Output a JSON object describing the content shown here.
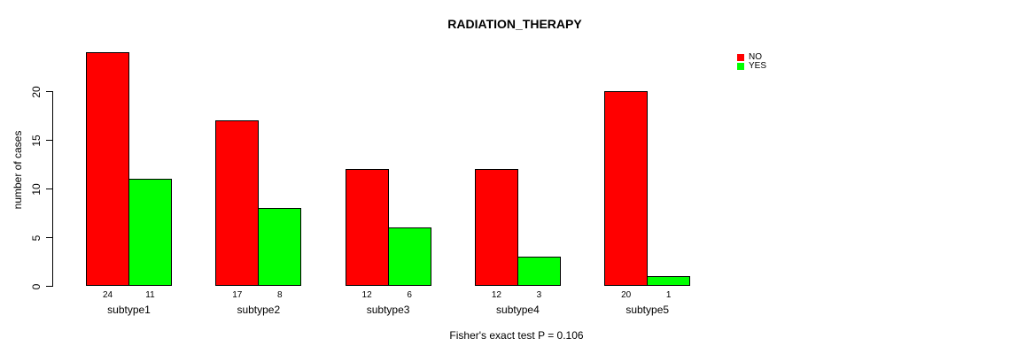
{
  "chart_data": {
    "type": "bar",
    "title": "RADIATION_THERAPY",
    "ylabel": "number of cases",
    "xlabel": "",
    "categories": [
      "subtype1",
      "subtype2",
      "subtype3",
      "subtype4",
      "subtype5"
    ],
    "series": [
      {
        "name": "NO",
        "color": "#ff0000",
        "values": [
          24,
          17,
          12,
          12,
          20
        ]
      },
      {
        "name": "YES",
        "color": "#00ff00",
        "values": [
          11,
          8,
          6,
          3,
          1
        ]
      }
    ],
    "bar_value_labels": [
      [
        24,
        11
      ],
      [
        17,
        8
      ],
      [
        12,
        6
      ],
      [
        12,
        3
      ],
      [
        20,
        1
      ]
    ],
    "y_ticks": [
      0,
      5,
      10,
      15,
      20
    ],
    "ylim": [
      0,
      24
    ],
    "grid": false,
    "legend_position": "top-right",
    "bar_border_color": "#000000",
    "annotation": "Fisher's exact test P = 0.106"
  }
}
